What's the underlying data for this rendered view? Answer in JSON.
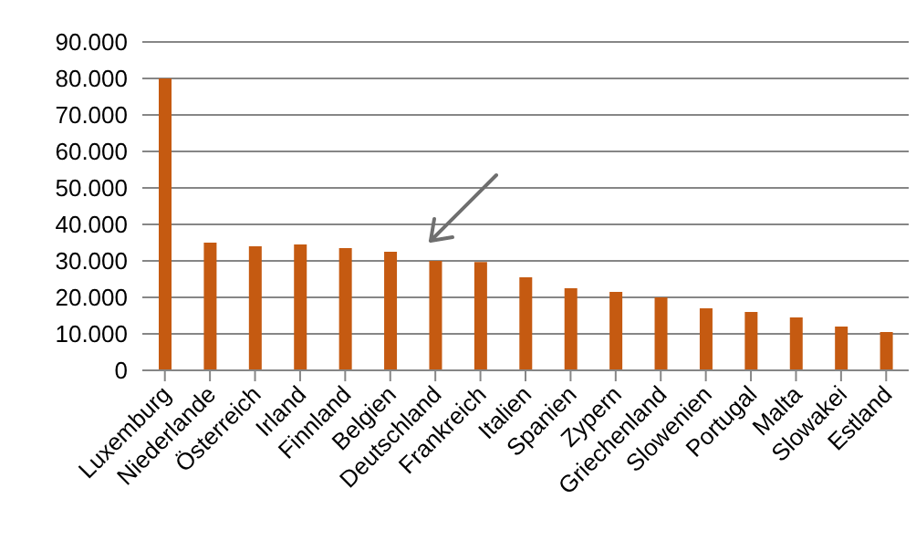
{
  "chart_data": {
    "type": "bar",
    "categories": [
      "Luxemburg",
      "Niederlande",
      "Österreich",
      "Irland",
      "Finnland",
      "Belgien",
      "Deutschland",
      "Frankreich",
      "Italien",
      "Spanien",
      "Zypern",
      "Griechenland",
      "Slowenien",
      "Portugal",
      "Malta",
      "Slowakei",
      "Estland"
    ],
    "values": [
      80000,
      35000,
      34000,
      34500,
      33500,
      32500,
      30000,
      29700,
      25500,
      22500,
      21500,
      20000,
      17000,
      16000,
      14500,
      12000,
      10500
    ],
    "color": "#c55a11",
    "ylim": [
      0,
      90000
    ],
    "yticks": [
      {
        "value": 0,
        "label": "0"
      },
      {
        "value": 10000,
        "label": "10.000"
      },
      {
        "value": 20000,
        "label": "20.000"
      },
      {
        "value": 30000,
        "label": "30.000"
      },
      {
        "value": 40000,
        "label": "40.000"
      },
      {
        "value": 50000,
        "label": "50.000"
      },
      {
        "value": 60000,
        "label": "60.000"
      },
      {
        "value": 70000,
        "label": "70.000"
      },
      {
        "value": 80000,
        "label": "80.000"
      },
      {
        "value": 90000,
        "label": "90.000"
      }
    ],
    "grid": "y",
    "legend": false
  }
}
